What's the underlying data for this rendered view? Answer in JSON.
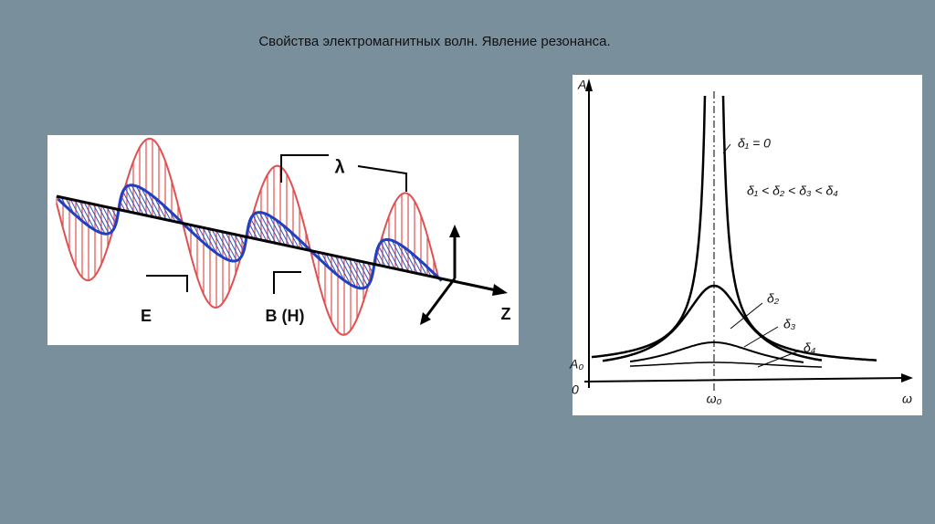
{
  "title": "Свойства электромагнитных волн. Явление резонанса.",
  "wave_diagram": {
    "labels": [
      "λ",
      "E",
      "B (H)",
      "Z"
    ]
  },
  "resonance_graph": {
    "labels": [
      "A",
      "δ₁ = 0",
      "δ₁ < δ₂ < δ₃ < δ₄",
      "δ₂",
      "δ₃",
      "δ₄",
      "A₀",
      "0",
      "ω₀",
      "ω"
    ]
  }
}
